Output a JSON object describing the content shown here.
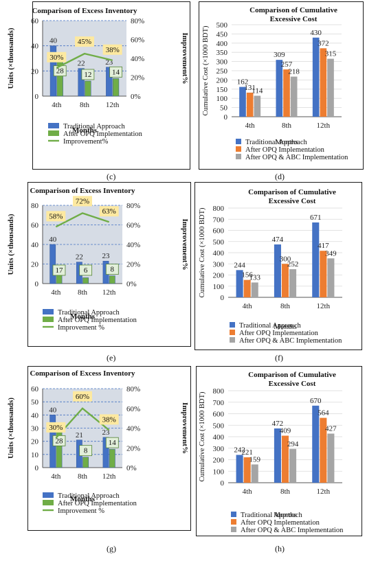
{
  "colors": {
    "traditional": "#4472c4",
    "opq": "#70ad47",
    "improvement": "#70ad47",
    "label_box": "#fde9a0",
    "opq_bar": "#ed7d31",
    "abc_bar": "#a5a5a5",
    "plot_bg": "#d6dce5"
  },
  "panels": [
    {
      "caption": "(c)",
      "chart_data": {
        "type": "bar",
        "title": "Comparison of Excess Inventory",
        "xlabel": "Months",
        "ylabel": "Units (×thousands)",
        "y2label": "Improvement%",
        "categories": [
          "4th",
          "8th",
          "12th"
        ],
        "ylim": [
          0,
          60
        ],
        "yticks": [
          "0",
          "20",
          "40",
          "60"
        ],
        "y2lim": [
          0,
          80
        ],
        "y2ticks": [
          "0%",
          "20%",
          "40%",
          "60%",
          "80%"
        ],
        "series": [
          {
            "name": "Traditional Approach",
            "values": [
              40,
              22,
              23
            ]
          },
          {
            "name": "After OPQ Implementation",
            "values": [
              28,
              12,
              14
            ]
          }
        ],
        "line_series": {
          "name": "Improvement%",
          "values": [
            30,
            45,
            38
          ],
          "labels": [
            "30%",
            "45%",
            "38%"
          ]
        }
      }
    },
    {
      "caption": "(d)",
      "chart_data": {
        "type": "bar",
        "title": "Comparison of Cumulative Excessive Cost",
        "xlabel": "Months",
        "ylabel": "Cumulative Cost (×1000 BDT)",
        "categories": [
          "4th",
          "8th",
          "12th"
        ],
        "ylim": [
          0,
          500
        ],
        "yticks": [
          "0",
          "50",
          "100",
          "150",
          "200",
          "250",
          "300",
          "350",
          "400",
          "450",
          "500"
        ],
        "series": [
          {
            "name": "Traditional Approach",
            "values": [
              162,
              309,
              430
            ]
          },
          {
            "name": "After OPQ Implementation",
            "values": [
              131,
              257,
              372
            ]
          },
          {
            "name": "After OPQ & ABC Implementation",
            "values": [
              114,
              218,
              315
            ]
          }
        ]
      }
    },
    {
      "caption": "(e)",
      "chart_data": {
        "type": "bar",
        "title": "Comparison of Excess Inventory",
        "xlabel": "Months",
        "ylabel": "Units (×thousands)",
        "y2label": "Improvement%",
        "categories": [
          "4th",
          "8th",
          "12th"
        ],
        "ylim": [
          0,
          80
        ],
        "yticks": [
          "0",
          "20",
          "40",
          "60",
          "80"
        ],
        "y2lim": [
          0,
          80
        ],
        "y2ticks": [
          "0%",
          "20%",
          "40%",
          "60%",
          "80%"
        ],
        "series": [
          {
            "name": "Traditional Approach",
            "values": [
              40,
              22,
              23
            ]
          },
          {
            "name": "After OPQ Implementation",
            "values": [
              17,
              6,
              8
            ]
          }
        ],
        "line_series": {
          "name": "Improvement %",
          "values": [
            58,
            72,
            63
          ],
          "labels": [
            "58%",
            "72%",
            "63%"
          ]
        }
      }
    },
    {
      "caption": "(f)",
      "chart_data": {
        "type": "bar",
        "title": "Comparison of Cumulative Excessive Cost",
        "xlabel": "Months",
        "ylabel": "Cumulative Cost (×1000 BDT)",
        "categories": [
          "4th",
          "8th",
          "12th"
        ],
        "ylim": [
          0,
          800
        ],
        "yticks": [
          "0",
          "100",
          "200",
          "300",
          "400",
          "500",
          "600",
          "700",
          "800"
        ],
        "series": [
          {
            "name": "Traditional Approach",
            "values": [
              244,
              474,
              671
            ]
          },
          {
            "name": "After OPQ Implementation",
            "values": [
              156,
              300,
              417
            ]
          },
          {
            "name": "After OPQ & ABC Implementation",
            "values": [
              133,
              252,
              349
            ]
          }
        ]
      }
    },
    {
      "caption": "(g)",
      "chart_data": {
        "type": "bar",
        "title": "Comparison of Excess Inventory",
        "xlabel": "Months",
        "ylabel": "Units (×thousands)",
        "y2label": "Improvement%",
        "categories": [
          "4th",
          "8th",
          "12th"
        ],
        "ylim": [
          0,
          60
        ],
        "yticks": [
          "0",
          "10",
          "20",
          "30",
          "40",
          "50",
          "60"
        ],
        "y2lim": [
          0,
          80
        ],
        "y2ticks": [
          "0%",
          "20%",
          "40%",
          "60%",
          "80%"
        ],
        "series": [
          {
            "name": "Traditional Approach",
            "values": [
              40,
              21,
              23
            ]
          },
          {
            "name": "After OPQ Implementation",
            "values": [
              28,
              8,
              14
            ]
          }
        ],
        "line_series": {
          "name": "Improvement %",
          "values": [
            30,
            60,
            38
          ],
          "labels": [
            "30%",
            "60%",
            "38%"
          ]
        }
      }
    },
    {
      "caption": "(h)",
      "chart_data": {
        "type": "bar",
        "title": "Comparison of Cumulative Excessive Cost",
        "xlabel": "Months",
        "ylabel": "Cumulative Cost (×1000 BDT)",
        "categories": [
          "4th",
          "8th",
          "12th"
        ],
        "ylim": [
          0,
          800
        ],
        "yticks": [
          "0",
          "100",
          "200",
          "300",
          "400",
          "500",
          "600",
          "700",
          "800"
        ],
        "series": [
          {
            "name": "Traditional Approach",
            "values": [
              242,
              472,
              670
            ]
          },
          {
            "name": "After OPQ Implementation",
            "values": [
              221,
              409,
              564
            ]
          },
          {
            "name": "After OPQ & ABC Implementation",
            "values": [
              159,
              294,
              427
            ]
          }
        ]
      }
    }
  ]
}
